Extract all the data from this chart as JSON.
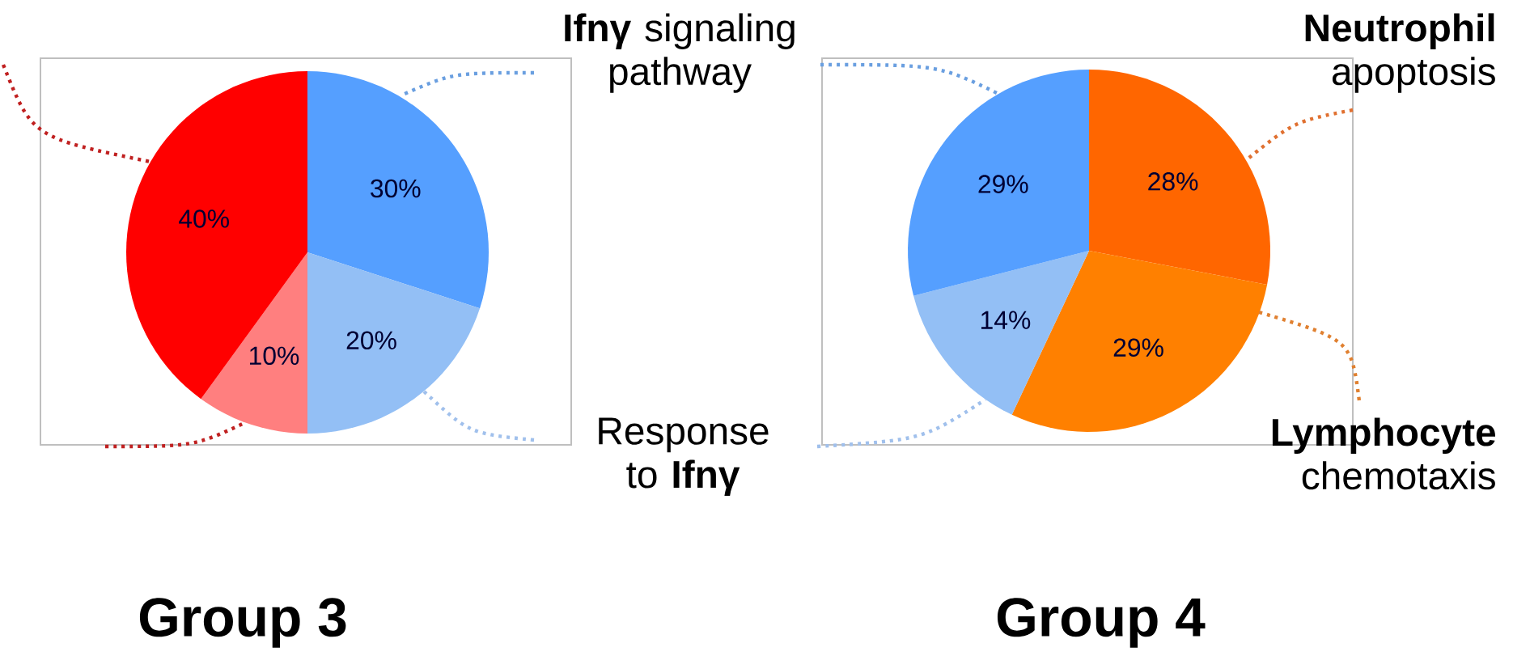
{
  "chart_data": [
    {
      "type": "pie",
      "title": "Group 3",
      "categories": [
        "**Ifnγ** signaling pathway",
        "Response to **Ifnγ**",
        null,
        null
      ],
      "values": [
        30,
        20,
        10,
        40
      ],
      "colors": [
        "#559fff",
        "#93bff5",
        "#ff7f7f",
        "#ff0000"
      ],
      "value_labels": [
        "30%",
        "20%",
        "10%",
        "40%"
      ]
    },
    {
      "type": "pie",
      "title": "Group 4",
      "categories": [
        "**Neutrophil** apoptosis",
        "**Lymphocyte** chemotaxis",
        null,
        null
      ],
      "values": [
        28,
        29,
        14,
        29
      ],
      "colors": [
        "#ff6600",
        "#ff8000",
        "#93bff5",
        "#559fff"
      ],
      "value_labels": [
        "28%",
        "29%",
        "14%",
        "29%"
      ]
    }
  ]
}
